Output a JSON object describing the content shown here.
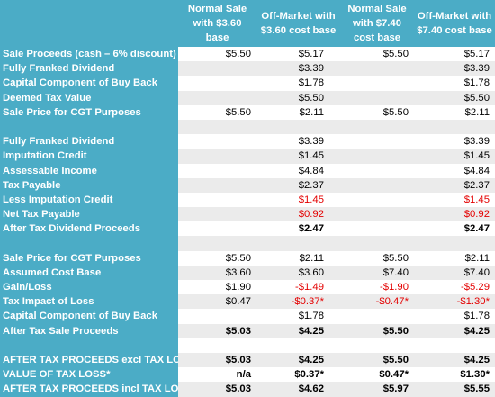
{
  "columns": [
    "Normal Sale with $3.60 base",
    "Off-Market with $3.60 cost base",
    "Normal Sale with $7.40 cost base",
    "Off-Market with $7.40 cost base"
  ],
  "rows": [
    {
      "label": "Sale Proceeds (cash – 6% discount)",
      "v": [
        "$5.50",
        "$5.17",
        "$5.50",
        "$5.17"
      ]
    },
    {
      "label": "Fully Franked Dividend",
      "v": [
        "",
        "$3.39",
        "",
        "$3.39"
      ]
    },
    {
      "label": "Capital Component  of Buy Back",
      "v": [
        "",
        "$1.78",
        "",
        "$1.78"
      ]
    },
    {
      "label": "Deemed Tax Value",
      "v": [
        "",
        "$5.50",
        "",
        "$5.50"
      ]
    },
    {
      "label": "Sale Price for CGT Purposes",
      "v": [
        "$5.50",
        "$2.11",
        "$5.50",
        "$2.11"
      ]
    },
    {
      "label": "",
      "v": [
        "",
        "",
        "",
        ""
      ]
    },
    {
      "label": "Fully Franked Dividend",
      "v": [
        "",
        "$3.39",
        "",
        "$3.39"
      ]
    },
    {
      "label": "Imputation Credit",
      "v": [
        "",
        "$1.45",
        "",
        "$1.45"
      ]
    },
    {
      "label": "Assessable Income",
      "v": [
        "",
        "$4.84",
        "",
        "$4.84"
      ]
    },
    {
      "label": "Tax Payable",
      "v": [
        "",
        "$2.37",
        "",
        "$2.37"
      ]
    },
    {
      "label": "Less Imputation Credit",
      "v": [
        "",
        "$1.45",
        "",
        "$1.45"
      ]
    },
    {
      "label": "Net Tax Payable",
      "v": [
        "",
        "$0.92",
        "",
        "$0.92"
      ]
    },
    {
      "label": "After Tax Dividend Proceeds",
      "v": [
        "",
        "$2.47",
        "",
        "$2.47"
      ]
    },
    {
      "label": "",
      "v": [
        "",
        "",
        "",
        ""
      ]
    },
    {
      "label": "Sale Price for CGT Purposes",
      "v": [
        "$5.50",
        "$2.11",
        "$5.50",
        "$2.11"
      ]
    },
    {
      "label": "Assumed Cost Base",
      "v": [
        "$3.60",
        "$3.60",
        "$7.40",
        "$7.40"
      ]
    },
    {
      "label": "Gain/Loss",
      "v": [
        "$1.90",
        "-$1.49",
        "-$1.90",
        "-$5.29"
      ]
    },
    {
      "label": "Tax Impact of Loss",
      "v": [
        "$0.47",
        "-$0.37*",
        "-$0.47*",
        "-$1.30*"
      ]
    },
    {
      "label": "Capital Component  of Buy Back",
      "v": [
        "",
        "$1.78",
        "",
        "$1.78"
      ]
    },
    {
      "label": "After Tax Sale Proceeds",
      "v": [
        "$5.03",
        "$4.25",
        "$5.50",
        "$4.25"
      ]
    },
    {
      "label": "",
      "v": [
        "",
        "",
        "",
        ""
      ]
    },
    {
      "label": "AFTER TAX PROCEEDS excl TAX LOSS",
      "v": [
        "$5.03",
        "$4.25",
        "$5.50",
        "$4.25"
      ]
    },
    {
      "label": "VALUE OF TAX LOSS*",
      "v": [
        "n/a",
        "$0.37*",
        "$0.47*",
        "$1.30*"
      ]
    },
    {
      "label": "AFTER TAX PROCEEDS incl TAX LOSS",
      "v": [
        "$5.03",
        "$4.62",
        "$5.97",
        "$5.55"
      ]
    }
  ],
  "colors": {
    "header_bg": "#4bacc6",
    "header_text": "#ffffff",
    "negative": "#e40000",
    "stripe": "#ebebeb"
  }
}
